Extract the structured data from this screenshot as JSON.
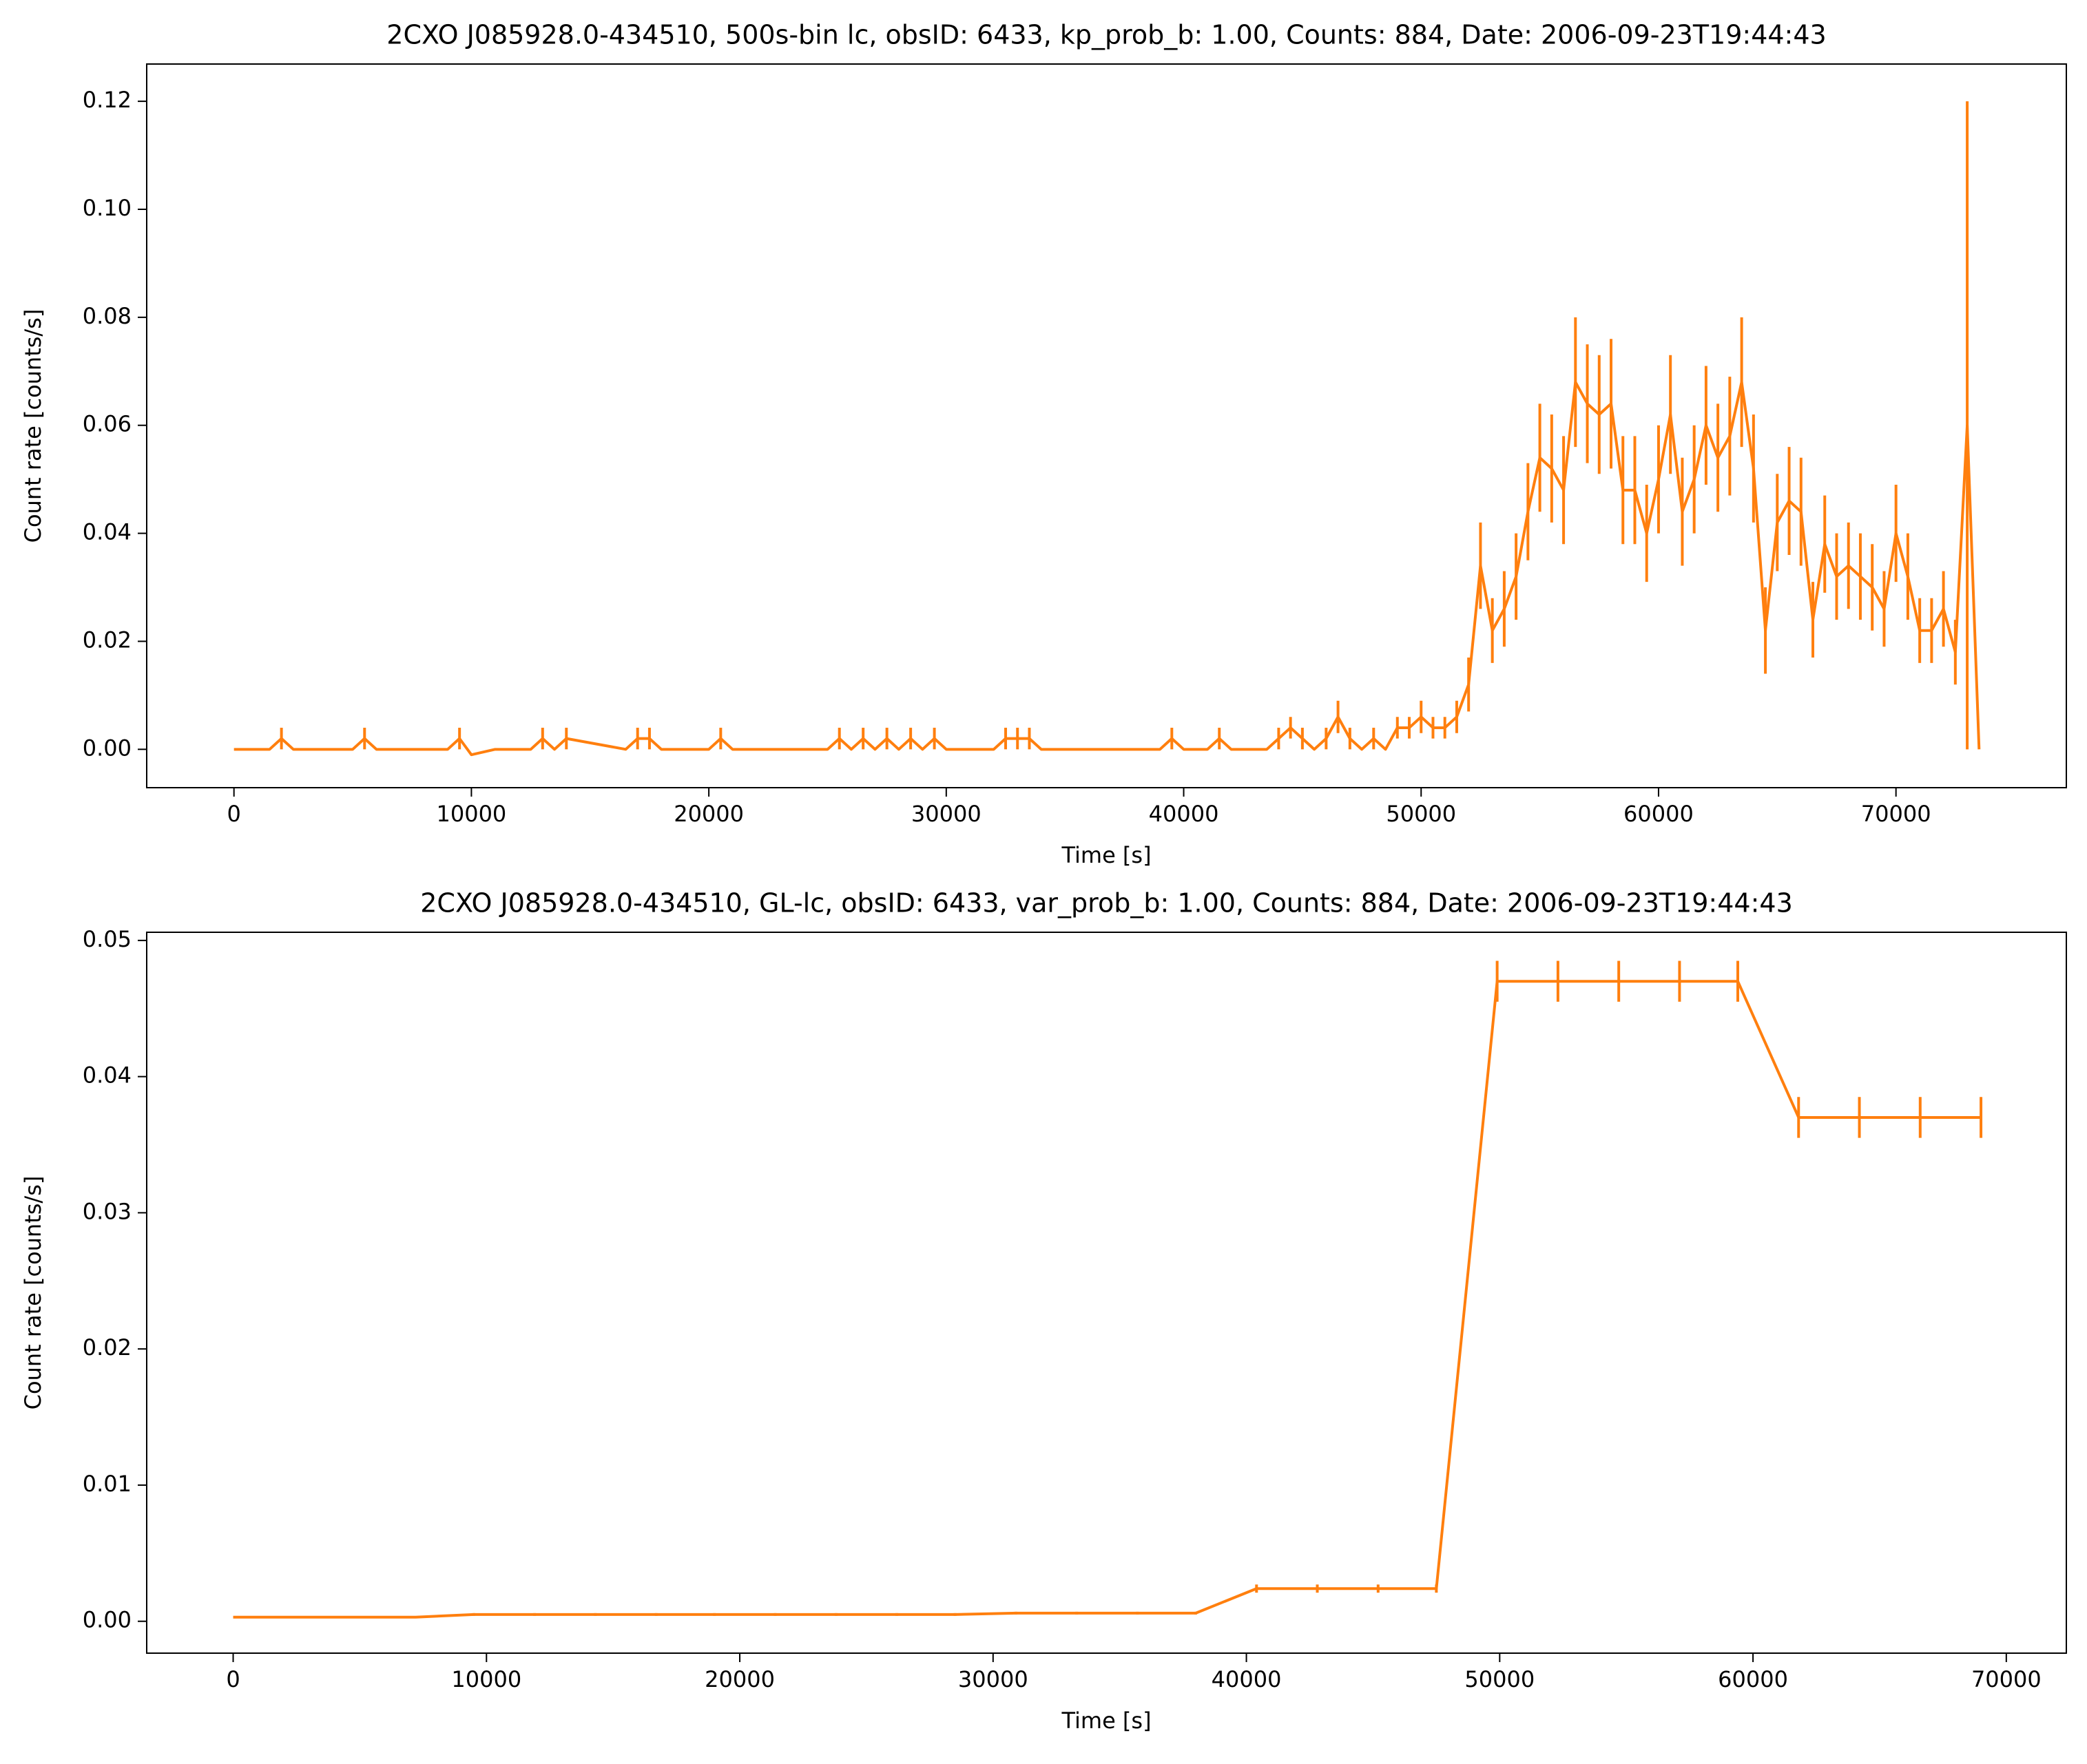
{
  "chart_data": [
    {
      "type": "line",
      "title": "2CXO J085928.0-434510, 500s-bin lc, obsID: 6433, kp_prob_b: 1.00, Counts: 884, Date: 2006-09-23T19:44:43",
      "xlabel": "Time [s]",
      "ylabel": "Count rate [counts/s]",
      "color": "#ff7f0e",
      "x": [
        0,
        1000,
        1500,
        2000,
        2500,
        3000,
        4000,
        5000,
        5500,
        6000,
        7000,
        8000,
        9000,
        9500,
        10000,
        11000,
        12000,
        12500,
        13000,
        13500,
        14000,
        16500,
        17000,
        17500,
        18000,
        19000,
        20000,
        20500,
        21000,
        22000,
        23000,
        24000,
        25000,
        25500,
        26000,
        26500,
        27000,
        27500,
        28000,
        28500,
        29000,
        29500,
        30000,
        31000,
        32000,
        32500,
        33000,
        33500,
        34000,
        36000,
        38000,
        39000,
        39500,
        40000,
        41000,
        41500,
        42000,
        43000,
        43500,
        44000,
        44500,
        45000,
        45500,
        46000,
        46500,
        47000,
        47500,
        48000,
        48500,
        49000,
        49500,
        50000,
        50500,
        51000,
        51500,
        52000,
        52500,
        53000,
        53500,
        54000,
        54500,
        55000,
        55500,
        56000,
        56500,
        57000,
        57500,
        58000,
        58500,
        59000,
        59500,
        60000,
        60500,
        61000,
        61500,
        62000,
        62500,
        63000,
        63500,
        64000,
        64500,
        65000,
        65500,
        66000,
        66500,
        67000,
        67500,
        68000,
        68500,
        69000,
        69500,
        70000,
        70500,
        71000,
        71500,
        72000,
        72500,
        73000,
        73500
      ],
      "values": [
        0,
        0,
        0,
        0.002,
        0,
        0,
        0,
        0,
        0.002,
        0,
        0,
        0,
        0,
        0.002,
        -0.001,
        0,
        0,
        0,
        0.002,
        0,
        0.002,
        0,
        0.002,
        0.002,
        0,
        0,
        0,
        0.002,
        0,
        0,
        0,
        0,
        0,
        0.002,
        0,
        0.002,
        0,
        0.002,
        0,
        0.002,
        0,
        0.002,
        0,
        0,
        0,
        0.002,
        0.002,
        0.002,
        0,
        0,
        0,
        0,
        0.002,
        0,
        0,
        0.002,
        0,
        0,
        0,
        0.002,
        0.004,
        0.002,
        0,
        0.002,
        0.006,
        0.002,
        0,
        0.002,
        0,
        0.004,
        0.004,
        0.006,
        0.004,
        0.004,
        0.006,
        0.012,
        0.034,
        0.022,
        0.026,
        0.032,
        0.044,
        0.054,
        0.052,
        0.048,
        0.068,
        0.064,
        0.062,
        0.064,
        0.048,
        0.048,
        0.04,
        0.05,
        0.062,
        0.044,
        0.05,
        0.06,
        0.054,
        0.058,
        0.068,
        0.052,
        0.022,
        0.042,
        0.046,
        0.044,
        0.024,
        0.038,
        0.032,
        0.034,
        0.032,
        0.03,
        0.026,
        0.04,
        0.032,
        0.022,
        0.022,
        0.026,
        0.018,
        0.06,
        0
      ],
      "errors": [
        0,
        0,
        0,
        0.002,
        0,
        0,
        0,
        0,
        0.002,
        0,
        0,
        0,
        0,
        0.002,
        0,
        0,
        0,
        0,
        0.002,
        0,
        0.002,
        0,
        0.002,
        0.002,
        0,
        0,
        0,
        0.002,
        0,
        0,
        0,
        0,
        0,
        0.002,
        0,
        0.002,
        0,
        0.002,
        0,
        0.002,
        0,
        0.002,
        0,
        0,
        0,
        0.002,
        0.002,
        0.002,
        0,
        0,
        0,
        0,
        0.002,
        0,
        0,
        0.002,
        0,
        0,
        0,
        0.002,
        0.002,
        0.002,
        0,
        0.002,
        0.003,
        0.002,
        0,
        0.002,
        0,
        0.002,
        0.002,
        0.003,
        0.002,
        0.002,
        0.003,
        0.005,
        0.008,
        0.006,
        0.007,
        0.008,
        0.009,
        0.01,
        0.01,
        0.01,
        0.012,
        0.011,
        0.011,
        0.012,
        0.01,
        0.01,
        0.009,
        0.01,
        0.011,
        0.01,
        0.01,
        0.011,
        0.01,
        0.011,
        0.012,
        0.01,
        0.008,
        0.009,
        0.01,
        0.01,
        0.007,
        0.009,
        0.008,
        0.008,
        0.008,
        0.008,
        0.007,
        0.009,
        0.008,
        0.006,
        0.006,
        0.007,
        0.006,
        0.06,
        0
      ],
      "xlim": [
        -3675,
        77175
      ],
      "ylim": [
        -0.0071,
        0.1269
      ],
      "xticks": [
        0,
        10000,
        20000,
        30000,
        40000,
        50000,
        60000,
        70000
      ],
      "yticks": [
        {
          "value": 0,
          "label": "0.00"
        },
        {
          "value": 0.02,
          "label": "0.02"
        },
        {
          "value": 0.04,
          "label": "0.04"
        },
        {
          "value": 0.06,
          "label": "0.06"
        },
        {
          "value": 0.08,
          "label": "0.08"
        },
        {
          "value": 0.1,
          "label": "0.10"
        },
        {
          "value": 0.12,
          "label": "0.12"
        }
      ]
    },
    {
      "type": "line",
      "title": "2CXO J085928.0-434510, GL-lc, obsID: 6433, var_prob_b: 1.00, Counts: 884, Date: 2006-09-23T19:44:43",
      "xlabel": "Time [s]",
      "ylabel": "Count rate [counts/s]",
      "color": "#ff7f0e",
      "x": [
        0,
        7200,
        9500,
        11900,
        14300,
        16700,
        19000,
        21400,
        23800,
        26200,
        28500,
        30900,
        33300,
        35700,
        38000,
        40400,
        42800,
        45200,
        47500,
        49900,
        52300,
        54700,
        57100,
        59400,
        61800,
        64200,
        66600,
        69000
      ],
      "values": [
        0.0003,
        0.0003,
        0.0005,
        0.0005,
        0.0005,
        0.0005,
        0.0005,
        0.0005,
        0.0005,
        0.0005,
        0.0005,
        0.0006,
        0.0006,
        0.0006,
        0.0006,
        0.0024,
        0.0024,
        0.0024,
        0.0024,
        0.047,
        0.047,
        0.047,
        0.047,
        0.047,
        0.037,
        0.037,
        0.037,
        0.037
      ],
      "errors": [
        0,
        0,
        0.0001,
        0.0001,
        0.0001,
        0.0001,
        0.0001,
        0.0001,
        0.0001,
        0.0001,
        0.0001,
        0.0001,
        0.0001,
        0.0001,
        0.0001,
        0.0003,
        0.0003,
        0.0003,
        0.0003,
        0.0015,
        0.0015,
        0.0015,
        0.0015,
        0.0015,
        0.0015,
        0.0015,
        0.0015,
        0.0015
      ],
      "xlim": [
        -3413,
        72370
      ],
      "ylim": [
        -0.00234,
        0.0506
      ],
      "xticks": [
        0,
        10000,
        20000,
        30000,
        40000,
        50000,
        60000,
        70000
      ],
      "yticks": [
        {
          "value": 0,
          "label": "0.00"
        },
        {
          "value": 0.01,
          "label": "0.01"
        },
        {
          "value": 0.02,
          "label": "0.02"
        },
        {
          "value": 0.03,
          "label": "0.03"
        },
        {
          "value": 0.04,
          "label": "0.04"
        },
        {
          "value": 0.05,
          "label": "0.05"
        }
      ]
    }
  ]
}
